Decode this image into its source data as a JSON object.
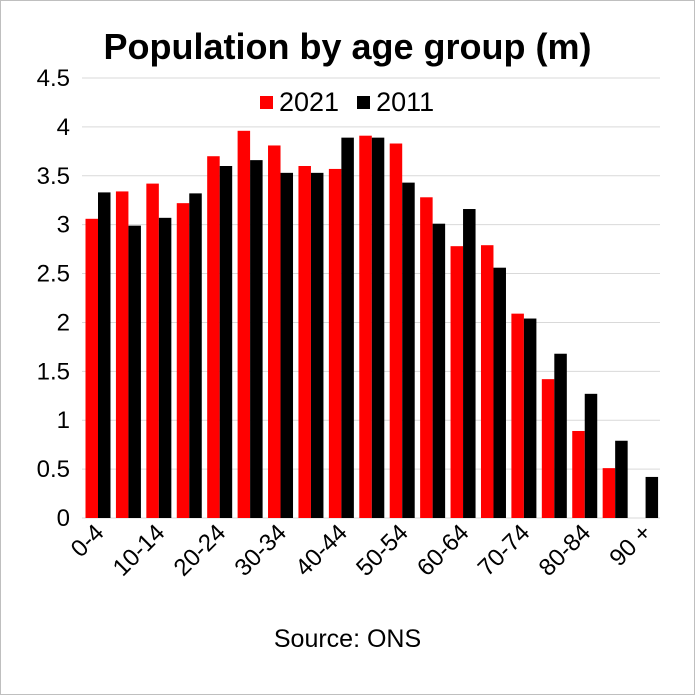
{
  "chart_data": {
    "type": "bar",
    "title": "Population by age group (m)",
    "xlabel": "",
    "ylabel": "",
    "ylim": [
      0,
      4.5
    ],
    "yticks": [
      0,
      0.5,
      1,
      1.5,
      2,
      2.5,
      3,
      3.5,
      4,
      4.5
    ],
    "ytick_labels": [
      "0",
      "0.5",
      "1",
      "1.5",
      "2",
      "2.5",
      "3",
      "3.5",
      "4",
      "4.5"
    ],
    "grid": true,
    "legend_position": "top-center",
    "categories": [
      "0-4",
      "5-9",
      "10-14",
      "15-19",
      "20-24",
      "25-29",
      "30-34",
      "35-39",
      "40-44",
      "45-49",
      "50-54",
      "55-59",
      "60-64",
      "65-69",
      "70-74",
      "75-79",
      "80-84",
      "85-89",
      "90 +"
    ],
    "shown_tick_labels": [
      "0-4",
      "10-14",
      "20-24",
      "30-34",
      "40-44",
      "50-54",
      "60-64",
      "70-74",
      "80-84",
      "90 +"
    ],
    "series": [
      {
        "name": "2021",
        "color": "#ff0000",
        "values": [
          3.06,
          3.34,
          3.42,
          3.22,
          3.7,
          3.96,
          3.81,
          3.6,
          3.57,
          3.91,
          3.83,
          3.28,
          2.78,
          2.79,
          2.09,
          1.42,
          0.89,
          0.51,
          0.0
        ]
      },
      {
        "name": "2011",
        "color": "#000000",
        "values": [
          3.33,
          2.99,
          3.07,
          3.32,
          3.6,
          3.66,
          3.53,
          3.53,
          3.89,
          3.89,
          3.43,
          3.01,
          3.16,
          2.56,
          2.04,
          1.68,
          1.27,
          0.79,
          0.42
        ]
      }
    ],
    "annotations": [
      "Source: ONS"
    ]
  },
  "source_note": "Source: ONS"
}
